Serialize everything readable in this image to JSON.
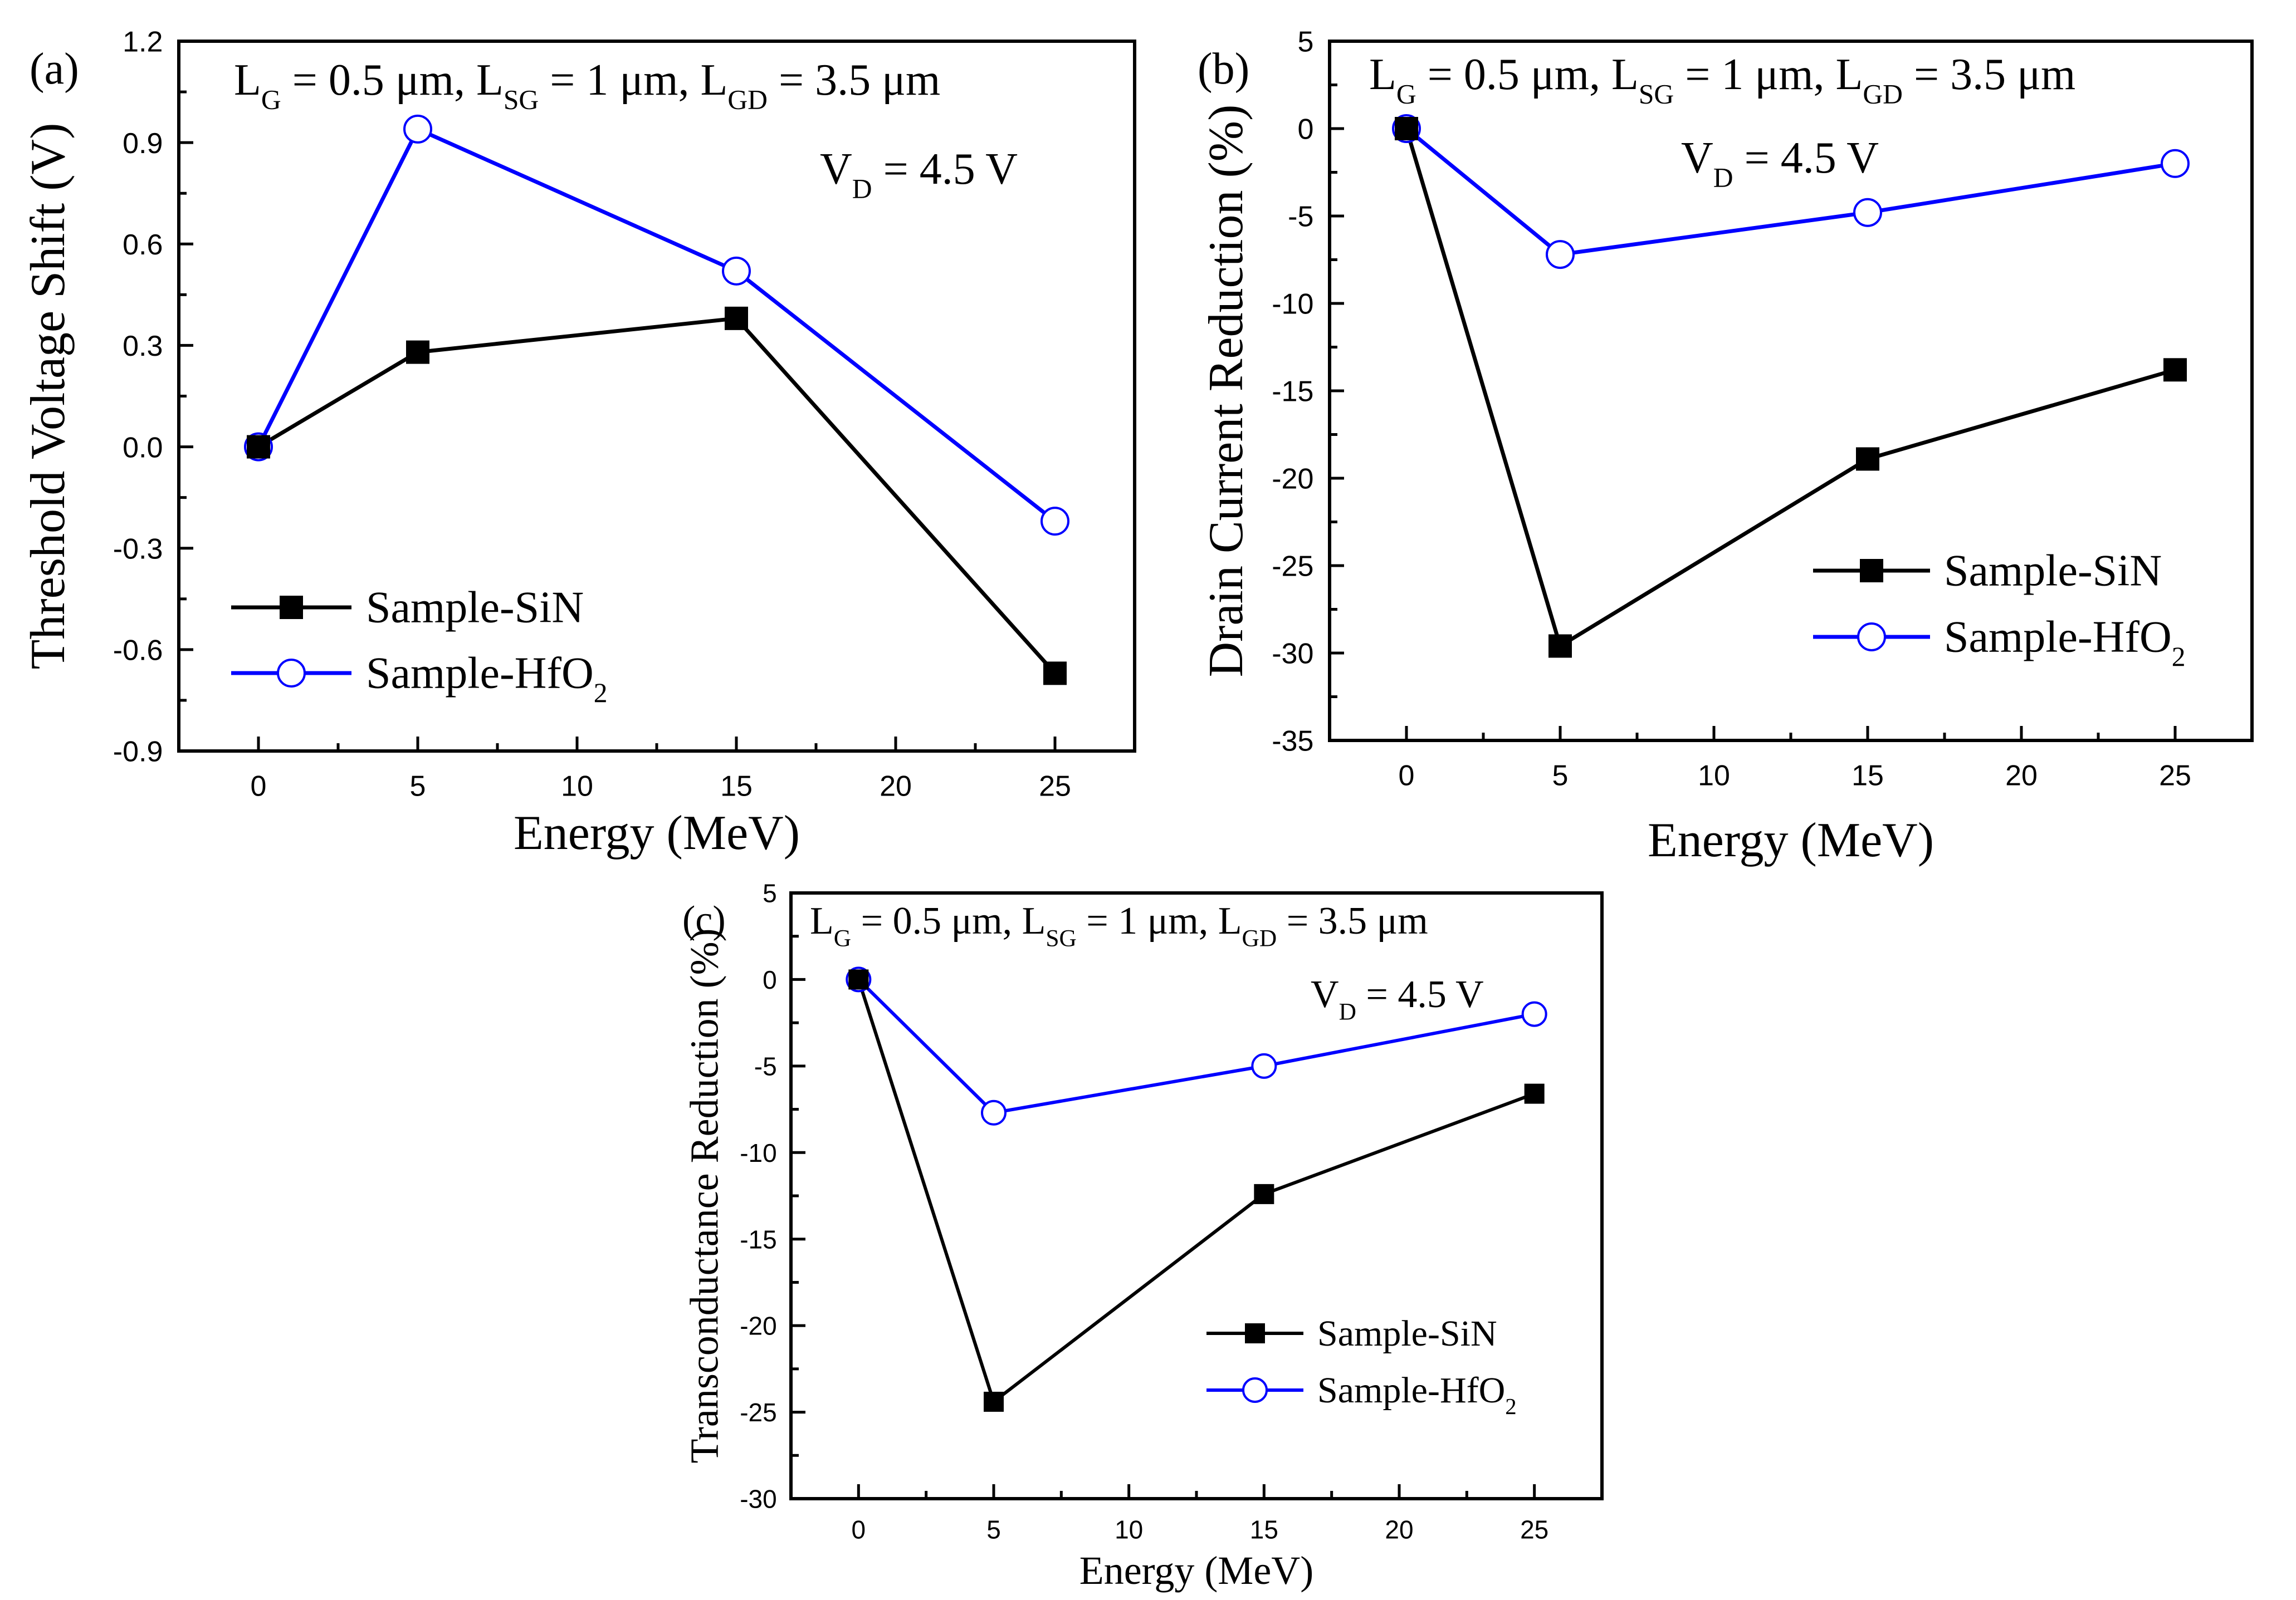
{
  "chart_data": [
    {
      "type": "line",
      "panel_label": "(a)",
      "xlabel": "Energy (MeV)",
      "ylabel": "Threshold Voltage Shift (V)",
      "xlim": [
        -2.5,
        27.5
      ],
      "ylim": [
        -0.9,
        1.2
      ],
      "xticks": [
        0,
        5,
        10,
        15,
        20,
        25
      ],
      "yticks": [
        -0.9,
        -0.6,
        -0.3,
        0.0,
        0.3,
        0.6,
        0.9,
        1.2
      ],
      "ytick_labels": [
        "-0.9",
        "-0.6",
        "-0.3",
        "0.0",
        "0.3",
        "0.6",
        "0.9",
        "1.2"
      ],
      "annotation_line1": [
        {
          "t": "L",
          "s": "G"
        },
        {
          "t": " = 0.5 μm, L",
          "s": "SG"
        },
        {
          "t": " = 1 μm, L",
          "s": "GD"
        },
        {
          "t": " = 3.5 μm",
          "s": ""
        }
      ],
      "annotation_line2": [
        {
          "t": "V",
          "s": "D"
        },
        {
          "t": " = 4.5 V",
          "s": ""
        }
      ],
      "legend_placement": "bottom-left",
      "x": [
        0,
        5,
        15,
        25
      ],
      "series": [
        {
          "label": [
            {
              "t": "Sample-SiN",
              "s": ""
            }
          ],
          "marker": "filled-square",
          "color": "#000000",
          "values": [
            0,
            0.28,
            0.38,
            -0.67
          ]
        },
        {
          "label": [
            {
              "t": "Sample-HfO",
              "s": "2"
            }
          ],
          "marker": "open-circle",
          "color": "#0000ff",
          "values": [
            0,
            0.94,
            0.52,
            -0.22
          ]
        }
      ]
    },
    {
      "type": "line",
      "panel_label": "(b)",
      "xlabel": "Energy (MeV)",
      "ylabel": "Drain Current Reduction (%)",
      "xlim": [
        -2.5,
        27.5
      ],
      "ylim": [
        -35,
        5
      ],
      "xticks": [
        0,
        5,
        10,
        15,
        20,
        25
      ],
      "yticks": [
        -35,
        -30,
        -25,
        -20,
        -15,
        -10,
        -5,
        0,
        5
      ],
      "ytick_labels": [
        "-35",
        "-30",
        "-25",
        "-20",
        "-15",
        "-10",
        "-5",
        "0",
        "5"
      ],
      "annotation_line1": [
        {
          "t": "L",
          "s": "G"
        },
        {
          "t": " = 0.5 μm, L",
          "s": "SG"
        },
        {
          "t": " = 1 μm, L",
          "s": "GD"
        },
        {
          "t": " = 3.5 μm",
          "s": ""
        }
      ],
      "annotation_line2": [
        {
          "t": "V",
          "s": "D"
        },
        {
          "t": " = 4.5 V",
          "s": ""
        }
      ],
      "legend_placement": "center-right",
      "x": [
        0,
        5,
        15,
        25
      ],
      "series": [
        {
          "label": [
            {
              "t": "Sample-SiN",
              "s": ""
            }
          ],
          "marker": "filled-square",
          "color": "#000000",
          "values": [
            0,
            -29.6,
            -18.9,
            -13.8
          ]
        },
        {
          "label": [
            {
              "t": "Sample-HfO",
              "s": "2"
            }
          ],
          "marker": "open-circle",
          "color": "#0000ff",
          "values": [
            0,
            -7.2,
            -4.8,
            -2.0
          ]
        }
      ]
    },
    {
      "type": "line",
      "panel_label": "(c)",
      "xlabel": "Energy (MeV)",
      "ylabel": "Transconductance Reduction (%)",
      "xlim": [
        -2.5,
        27.5
      ],
      "ylim": [
        -30,
        5
      ],
      "xticks": [
        0,
        5,
        10,
        15,
        20,
        25
      ],
      "yticks": [
        -30,
        -25,
        -20,
        -15,
        -10,
        -5,
        0,
        5
      ],
      "ytick_labels": [
        "-30",
        "-25",
        "-20",
        "-15",
        "-10",
        "-5",
        "0",
        "5"
      ],
      "annotation_line1": [
        {
          "t": "L",
          "s": "G"
        },
        {
          "t": " = 0.5 μm, L",
          "s": "SG"
        },
        {
          "t": " = 1 μm, L",
          "s": "GD"
        },
        {
          "t": " = 3.5 μm",
          "s": ""
        }
      ],
      "annotation_line2": [
        {
          "t": "V",
          "s": "D"
        },
        {
          "t": " = 4.5 V",
          "s": ""
        }
      ],
      "legend_placement": "bottom-right",
      "x": [
        0,
        5,
        15,
        25
      ],
      "series": [
        {
          "label": [
            {
              "t": "Sample-SiN",
              "s": ""
            }
          ],
          "marker": "filled-square",
          "color": "#000000",
          "values": [
            0,
            -24.4,
            -12.4,
            -6.6
          ]
        },
        {
          "label": [
            {
              "t": "Sample-HfO",
              "s": "2"
            }
          ],
          "marker": "open-circle",
          "color": "#0000ff",
          "values": [
            0,
            -7.7,
            -5.0,
            -2.0
          ]
        }
      ]
    }
  ]
}
